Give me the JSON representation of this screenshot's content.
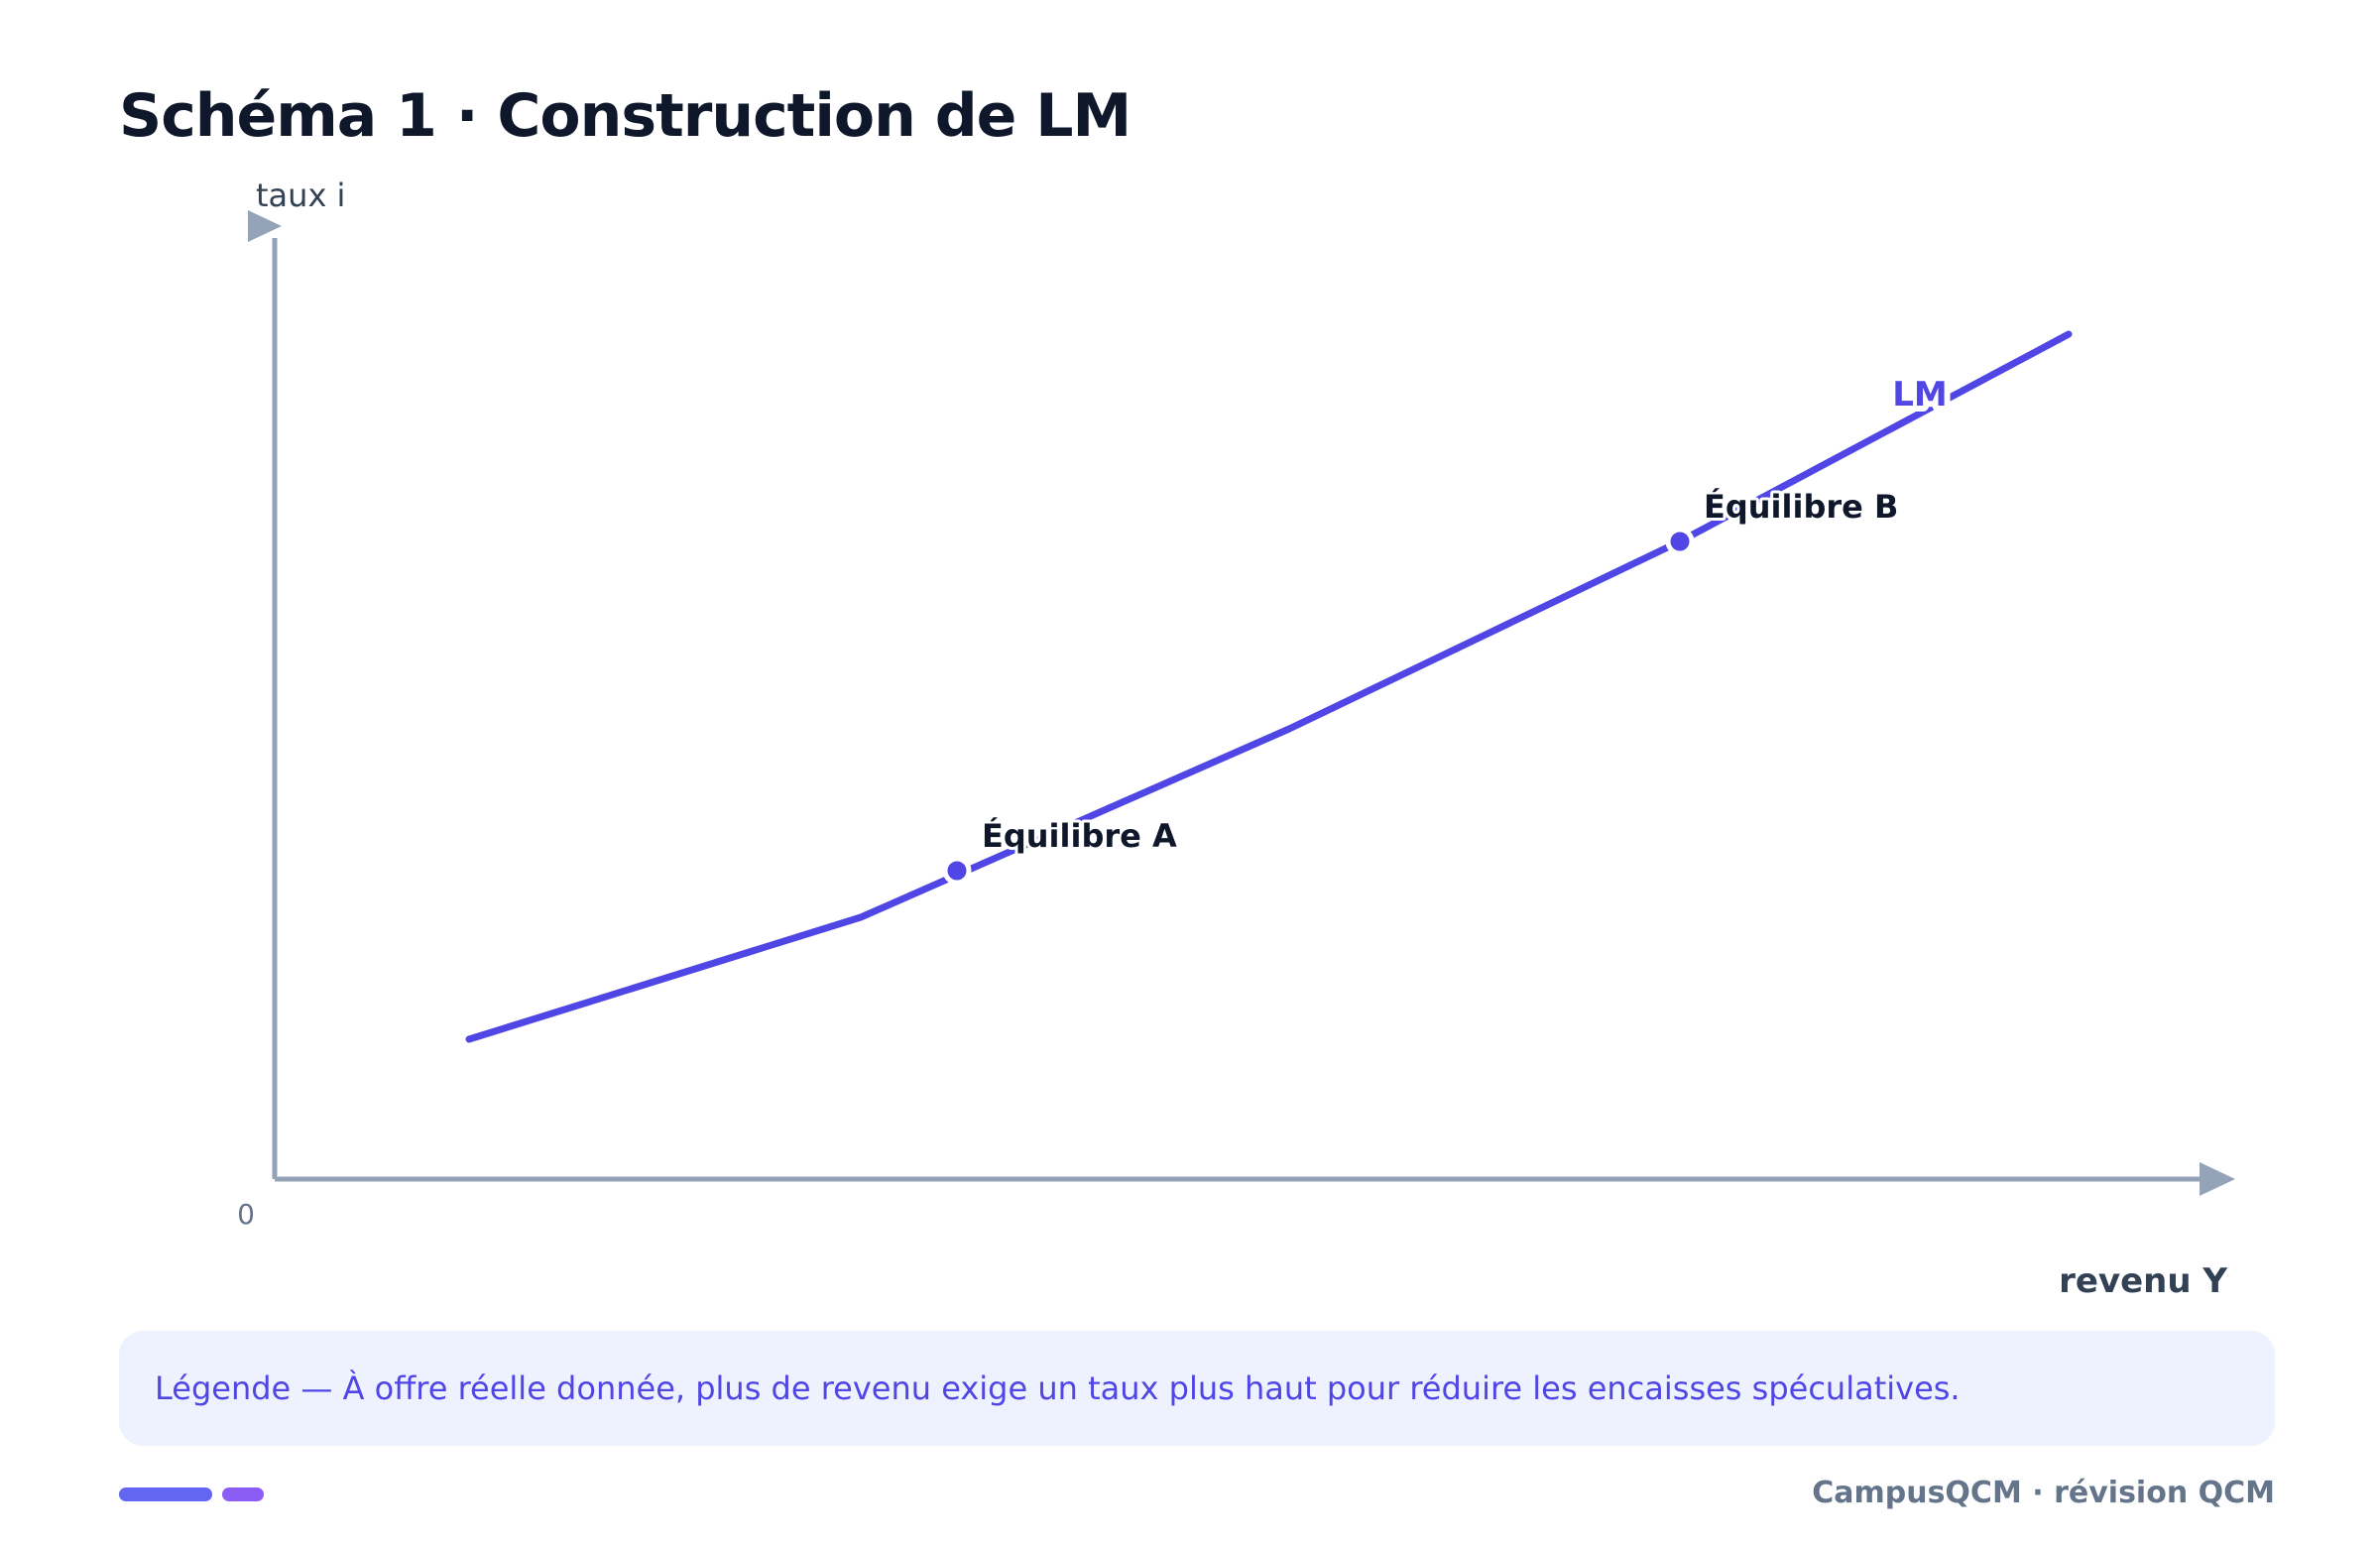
{
  "title": "Schéma 1 · Construction de LM",
  "diagram": {
    "y_axis_label": "taux i",
    "x_axis_label": "revenu Y",
    "origin_label": "0",
    "curve_label": "LM",
    "point_a_label": "Équilibre A",
    "point_b_label": "Équilibre B"
  },
  "legend": {
    "text": "Légende — À offre réelle donnée, plus de revenu exige un taux plus haut pour réduire les encaisses spéculatives."
  },
  "footer": {
    "brand": "CampusQCM · révision QCM"
  },
  "colors": {
    "curve": "#4f46e5",
    "axis": "#94a3b8",
    "title": "#0f172a",
    "legend_bg": "#eef2ff",
    "footer_bar_1": "#6366f1",
    "footer_bar_2": "#8b5cf6"
  }
}
